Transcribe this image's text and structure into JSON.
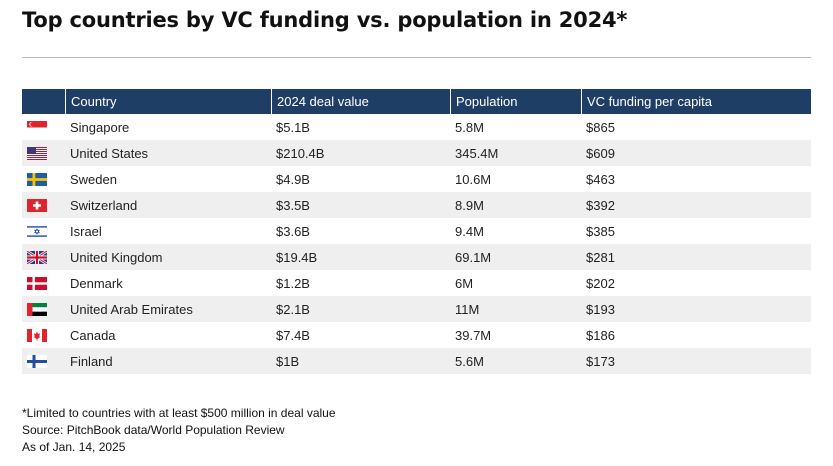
{
  "title": "Top countries by VC funding vs. population in 2024*",
  "chart_data": {
    "type": "table",
    "columns": [
      "",
      "Country",
      "2024 deal value",
      "Population",
      "VC funding per capita"
    ],
    "rows": [
      {
        "flag": "singapore-flag-icon",
        "country": "Singapore",
        "deal_value": "$5.1B",
        "population": "5.8M",
        "per_capita": "$865"
      },
      {
        "flag": "united-states-flag-icon",
        "country": "United States",
        "deal_value": "$210.4B",
        "population": "345.4M",
        "per_capita": "$609"
      },
      {
        "flag": "sweden-flag-icon",
        "country": "Sweden",
        "deal_value": "$4.9B",
        "population": "10.6M",
        "per_capita": "$463"
      },
      {
        "flag": "switzerland-flag-icon",
        "country": "Switzerland",
        "deal_value": "$3.5B",
        "population": "8.9M",
        "per_capita": "$392"
      },
      {
        "flag": "israel-flag-icon",
        "country": "Israel",
        "deal_value": "$3.6B",
        "population": "9.4M",
        "per_capita": "$385"
      },
      {
        "flag": "united-kingdom-flag-icon",
        "country": "United Kingdom",
        "deal_value": "$19.4B",
        "population": "69.1M",
        "per_capita": "$281"
      },
      {
        "flag": "denmark-flag-icon",
        "country": "Denmark",
        "deal_value": "$1.2B",
        "population": "6M",
        "per_capita": "$202"
      },
      {
        "flag": "uae-flag-icon",
        "country": "United Arab Emirates",
        "deal_value": "$2.1B",
        "population": "11M",
        "per_capita": "$193"
      },
      {
        "flag": "canada-flag-icon",
        "country": "Canada",
        "deal_value": "$7.4B",
        "population": "39.7M",
        "per_capita": "$186"
      },
      {
        "flag": "finland-flag-icon",
        "country": "Finland",
        "deal_value": "$1B",
        "population": "5.6M",
        "per_capita": "$173"
      }
    ]
  },
  "notes": {
    "footnote": "*Limited to countries with at least $500 million in deal value",
    "source": "Source: PitchBook data/World Population Review",
    "as_of": "As of Jan. 14, 2025"
  },
  "colors": {
    "header_bg": "#1f3e66",
    "stripe": "#efefef"
  }
}
